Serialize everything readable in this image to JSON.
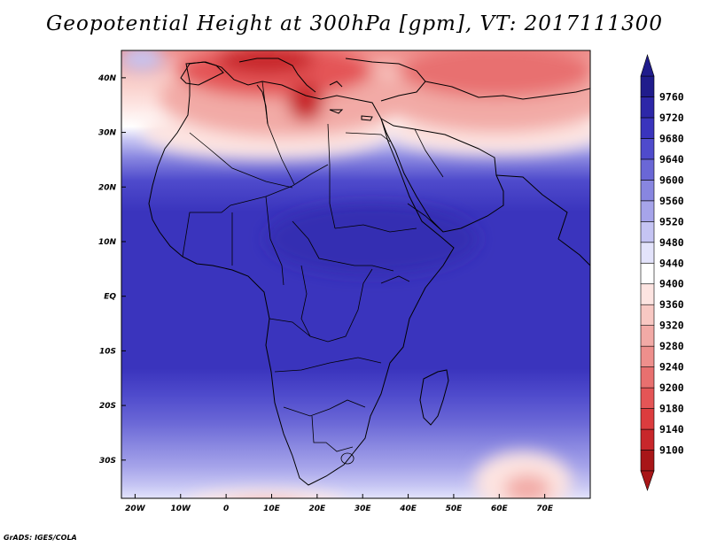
{
  "title": "Geopotential Height at 300hPa [gpm], VT: 2017111300",
  "credit": "GrADS: IGES/COLA",
  "map": {
    "lon_range": [
      -23,
      80
    ],
    "lat_range": [
      -37,
      45
    ],
    "lon_ticks": [
      "20W",
      "10W",
      "0",
      "10E",
      "20E",
      "30E",
      "40E",
      "50E",
      "60E",
      "70E"
    ],
    "lat_ticks": [
      "40N",
      "30N",
      "20N",
      "10N",
      "EQ",
      "10S",
      "20S",
      "30S"
    ]
  },
  "colorbar": {
    "levels": [
      "9100",
      "9140",
      "9180",
      "9200",
      "9240",
      "9280",
      "9320",
      "9360",
      "9400",
      "9440",
      "9480",
      "9520",
      "9560",
      "9600",
      "9640",
      "9680",
      "9720",
      "9760"
    ],
    "colors": [
      "#a81618",
      "#c8272b",
      "#dc3c3e",
      "#e45556",
      "#e8706f",
      "#ee8f8c",
      "#f2aaa6",
      "#f8c8c3",
      "#fde4e1",
      "#ffffff",
      "#e3e3fb",
      "#c5c4f3",
      "#a6a4ea",
      "#8886e0",
      "#6a67d6",
      "#4f4bcc",
      "#3a34bd",
      "#2d27a8",
      "#201c8c"
    ]
  }
}
